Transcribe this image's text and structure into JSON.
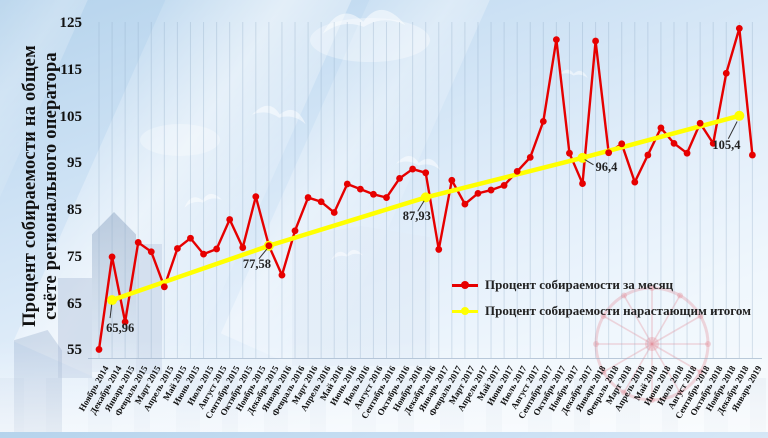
{
  "y_axis": {
    "title_line1": "Процент собираемости на общем",
    "title_line2": "счёте регионального оператора",
    "ticks": [
      "55",
      "65",
      "75",
      "85",
      "95",
      "105",
      "115",
      "125"
    ]
  },
  "legend": {
    "monthly_label": "Процент собираемости за месяц",
    "cumulative_label": "Процент собираемости нарастающим итогом"
  },
  "colors": {
    "monthly": "#e60000",
    "cumulative": "#ffff00",
    "grid": "#8fa9c4",
    "text": "#1a1a1a"
  },
  "chart_data": {
    "type": "line",
    "title": "",
    "ylabel": "Процент собираемости на общем счёте регионального оператора",
    "xlabel": "",
    "ylim": [
      55,
      125
    ],
    "ytick_step": 10,
    "grid": "vertical-monthly",
    "legend_position": "center-right",
    "categories": [
      "Ноябрь 2014",
      "Декабрь 2014",
      "Январь 2015",
      "Февраль 2015",
      "Март 2015",
      "Апрель 2015",
      "Май 2015",
      "Июнь 2015",
      "Июль 2015",
      "Август 2015",
      "Сентябрь 2015",
      "Октябрь 2015",
      "Ноябрь 2015",
      "Декабрь 2015",
      "Январь 2016",
      "Февраль 2016",
      "Март 2016",
      "Апрель 2016",
      "Май 2016",
      "Июнь 2016",
      "Июль 2016",
      "Август 2016",
      "Сентябрь 2016",
      "Октябрь 2016",
      "Ноябрь 2016",
      "Декабрь 2016",
      "Январь 2017",
      "Февраль 2017",
      "Март 2017",
      "Апрель 2017",
      "Май 2017",
      "Июнь 2017",
      "Июль 2017",
      "Август 2017",
      "Сентябрь 2017",
      "Октябрь 2017",
      "Ноябрь 2017",
      "Декабрь 2017",
      "Январь 2018",
      "Февраль 2018",
      "Март 2018",
      "Апрель 2018",
      "Май 2018",
      "Июнь 2018",
      "Июль 2018",
      "Август 2018",
      "Сентябрь 2018",
      "Октябрь 2018",
      "Ноябрь 2018",
      "Декабрь 2018",
      "Январь 2019"
    ],
    "series": [
      {
        "name": "Процент собираемости за месяц",
        "style": "line-markers",
        "color": "#e60000",
        "values": [
          55.4,
          75.2,
          61.3,
          78.3,
          76.3,
          68.8,
          77.0,
          79.2,
          75.8,
          76.9,
          83.2,
          77.2,
          88.1,
          77.6,
          71.3,
          80.8,
          87.9,
          87.0,
          84.7,
          90.8,
          89.7,
          88.6,
          87.9,
          92.0,
          94.0,
          93.2,
          76.8,
          91.6,
          86.5,
          88.8,
          89.5,
          90.5,
          93.5,
          96.5,
          104.2,
          121.7,
          97.4,
          90.9,
          121.4,
          97.5,
          99.4,
          91.2,
          97.0,
          102.8,
          99.5,
          97.4,
          103.8,
          99.5,
          114.5,
          124.1,
          97.0
        ]
      },
      {
        "name": "Процент собираемости нарастающим итогом",
        "style": "line-markers",
        "color": "#ffff00",
        "points": [
          {
            "category": "Декабрь 2014",
            "value": 65.96,
            "label": "65,96"
          },
          {
            "category": "Декабрь 2015",
            "value": 77.58,
            "label": "77,58"
          },
          {
            "category": "Декабрь 2016",
            "value": 87.93,
            "label": "87,93"
          },
          {
            "category": "Декабрь 2017",
            "value": 96.4,
            "label": "96,4"
          },
          {
            "category": "Декабрь 2018",
            "value": 105.4,
            "label": "105,4"
          }
        ]
      }
    ]
  }
}
